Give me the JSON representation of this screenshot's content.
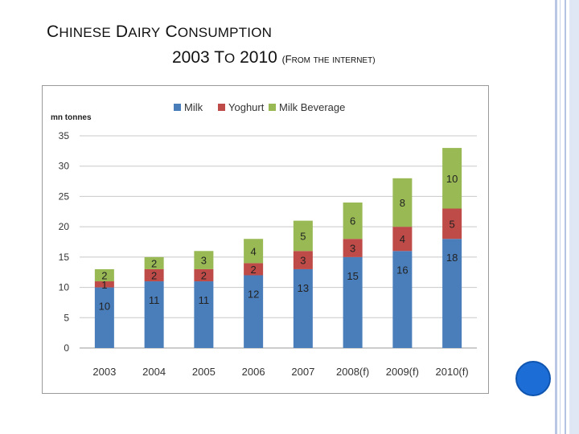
{
  "slide": {
    "title_line1": "Chinese Dairy Consumption",
    "title_line2_main": "2003 to 2010",
    "title_line2_source": "(from the internet)"
  },
  "chart_data": {
    "type": "bar",
    "stacked": true,
    "title": "",
    "ylabel": "mn tonnes",
    "xlabel": "",
    "ylim": [
      0,
      35
    ],
    "yticks": [
      0,
      5,
      10,
      15,
      20,
      25,
      30,
      35
    ],
    "grid": true,
    "legend_position": "top",
    "categories": [
      "2003",
      "2004",
      "2005",
      "2006",
      "2007",
      "2008(f)",
      "2009(f)",
      "2010(f)"
    ],
    "series": [
      {
        "name": "Milk",
        "color": "#4a7ebb",
        "values": [
          10,
          11,
          11,
          12,
          13,
          15,
          16,
          18
        ]
      },
      {
        "name": "Yoghurt",
        "color": "#be4b48",
        "values": [
          1,
          2,
          2,
          2,
          3,
          3,
          4,
          5
        ]
      },
      {
        "name": "Milk Beverage",
        "color": "#98b954",
        "values": [
          2,
          2,
          3,
          4,
          5,
          6,
          8,
          10
        ]
      }
    ],
    "data_labels": [
      [
        "10",
        "1",
        "2"
      ],
      [
        "11",
        "2",
        "2"
      ],
      [
        "11",
        "2",
        "3"
      ],
      [
        "12",
        "2",
        "4"
      ],
      [
        "13",
        "3",
        "5"
      ],
      [
        "15",
        "3",
        "6"
      ],
      [
        "16",
        "4",
        "8"
      ],
      [
        "18",
        "5",
        "10"
      ]
    ]
  }
}
